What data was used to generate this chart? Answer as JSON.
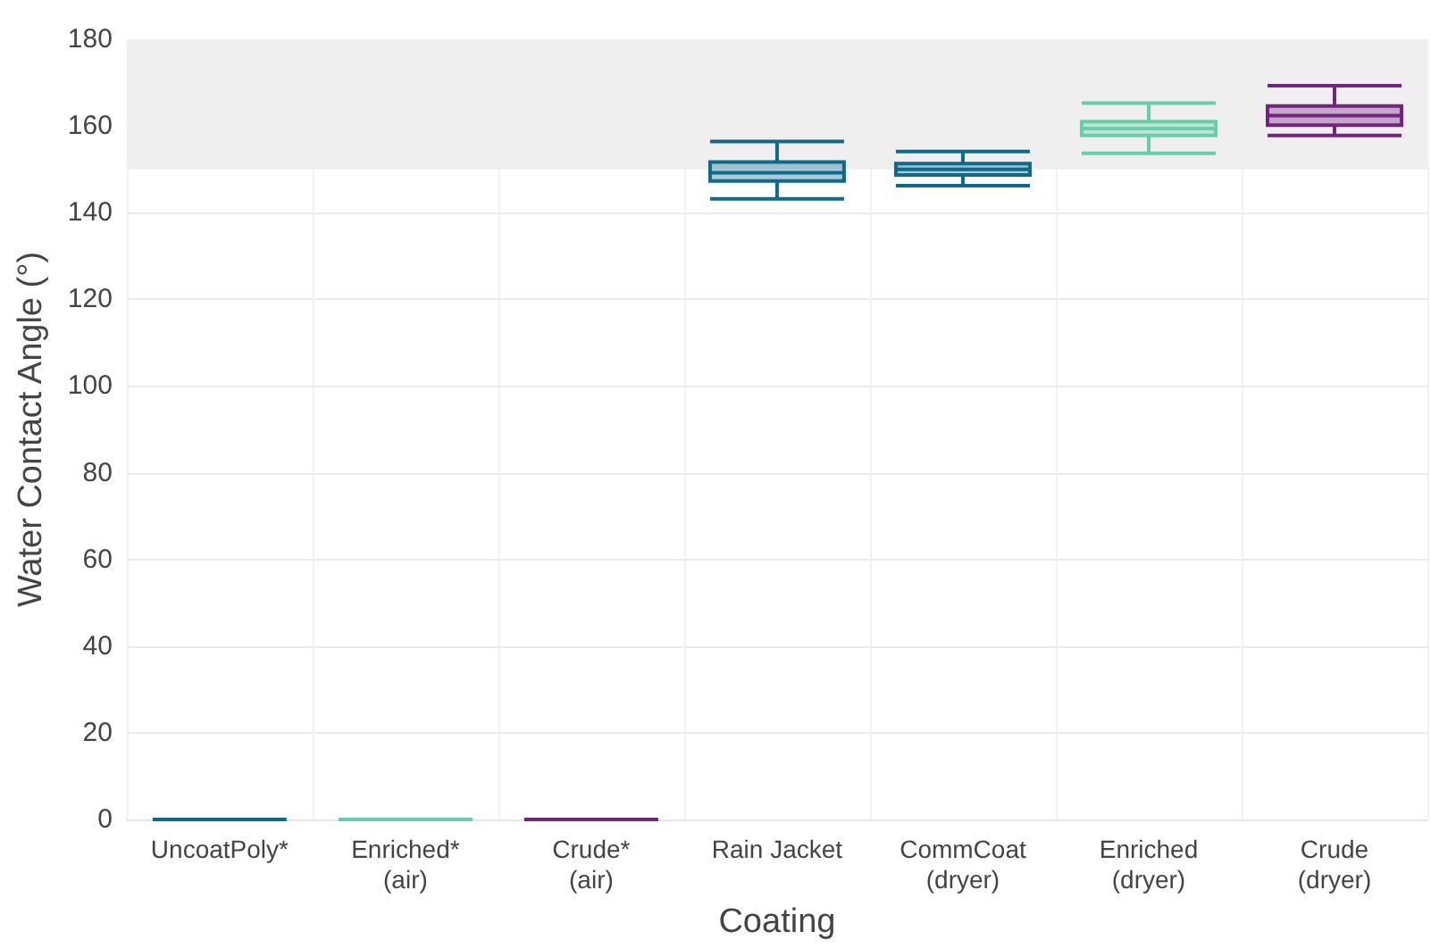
{
  "chart_data": {
    "type": "box",
    "xlabel": "Coating",
    "ylabel": "Water Contact Angle (°)",
    "categories": [
      "UncoatPoly*",
      "Enriched*\n(air)",
      "Crude*\n(air)",
      "Rain Jacket",
      "CommCoat\n(dryer)",
      "Enriched\n(dryer)",
      "Crude\n(dryer)"
    ],
    "boxes": [
      {
        "low": 0,
        "q1": 0,
        "median": 0,
        "q3": 0,
        "high": 0
      },
      {
        "low": 0,
        "q1": 0,
        "median": 0,
        "q3": 0,
        "high": 0
      },
      {
        "low": 0,
        "q1": 0,
        "median": 0,
        "q3": 0,
        "high": 0
      },
      {
        "low": 143.2,
        "q1": 147.3,
        "median": 149.2,
        "q3": 151.7,
        "high": 156.4
      },
      {
        "low": 146.2,
        "q1": 148.7,
        "median": 150,
        "q3": 151.3,
        "high": 154.1
      },
      {
        "low": 153.7,
        "q1": 157.8,
        "median": 159.4,
        "q3": 161,
        "high": 165.3
      },
      {
        "low": 157.8,
        "q1": 160.2,
        "median": 162.4,
        "q3": 164.6,
        "high": 169.3
      }
    ],
    "colors": [
      "#0e6a8a",
      "#66cfa9",
      "#74237f",
      "#0e6a8a",
      "#0e6a8a",
      "#66cfa9",
      "#74237f"
    ],
    "ylim": [
      0,
      180
    ],
    "yticks": [
      0,
      20,
      40,
      60,
      80,
      100,
      120,
      140,
      160,
      180
    ],
    "bands": [
      {
        "axis": "y",
        "from": 150,
        "to": 180,
        "color": "#efefef"
      }
    ],
    "grid": true
  }
}
